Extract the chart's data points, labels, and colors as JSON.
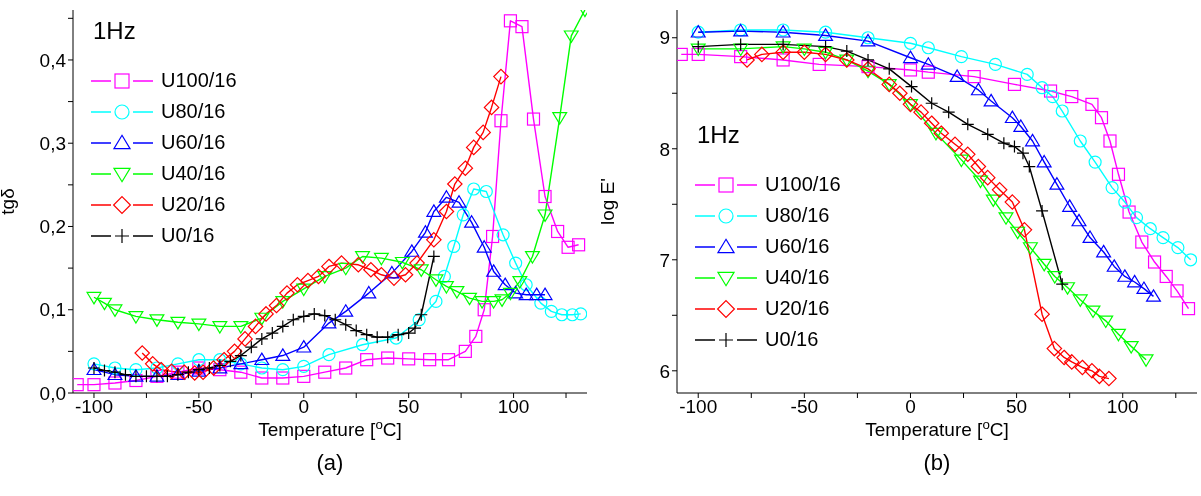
{
  "chart_data": [
    {
      "type": "line",
      "xlabel": "Temperature [$^{o}$C]",
      "ylabel": "tgδ",
      "annotations": [
        "1Hz",
        "(a)"
      ],
      "legend": "top left",
      "line_style": "solid",
      "xlim": [
        -110,
        135
      ],
      "xticks": [
        -100,
        {
          "value": -75,
          "label": null
        },
        -50,
        {
          "value": -25,
          "label": null
        },
        0,
        {
          "value": 25,
          "label": null
        },
        50,
        {
          "value": 75,
          "label": null
        },
        100,
        {
          "value": 125,
          "label": null
        }
      ],
      "ylim": [
        0,
        0.46
      ],
      "yticks": [
        {
          "value": 0,
          "label": "0,0"
        },
        {
          "value": 0.05,
          "label": null
        },
        {
          "value": 0.1,
          "label": "0,1"
        },
        {
          "value": 0.15,
          "label": null
        },
        {
          "value": 0.2,
          "label": "0,2"
        },
        {
          "value": 0.25,
          "label": null
        },
        {
          "value": 0.3,
          "label": "0,3"
        },
        {
          "value": 0.35,
          "label": null
        },
        {
          "value": 0.4,
          "label": "0,4"
        },
        {
          "value": 0.45,
          "label": null
        }
      ],
      "series": [
        {
          "name": "U100/16",
          "color": "#ff00ff",
          "marker": "square",
          "x": [
            -108,
            -100,
            -90,
            -80,
            -70,
            -60,
            -50,
            -40,
            -30,
            -20,
            -10,
            0,
            10,
            20,
            30,
            40,
            50,
            60,
            69,
            77,
            82,
            86,
            90,
            94,
            98.5,
            104,
            109.5,
            115,
            121,
            126,
            131
          ],
          "values": [
            0.01,
            0.01,
            0.012,
            0.015,
            0.02,
            0.025,
            0.03,
            0.028,
            0.025,
            0.018,
            0.018,
            0.02,
            0.025,
            0.03,
            0.04,
            0.042,
            0.041,
            0.04,
            0.04,
            0.05,
            0.068,
            0.1,
            0.188,
            0.327,
            0.447,
            0.44,
            0.329,
            0.236,
            0.194,
            0.175,
            0.178
          ]
        },
        {
          "name": "U80/16",
          "color": "#00ffff",
          "marker": "circle",
          "x": [
            -100,
            -90,
            -80,
            -70,
            -60,
            -50,
            -40,
            -30,
            -20,
            -10,
            0,
            12,
            28,
            44,
            55,
            63,
            67,
            71.5,
            76,
            81,
            87,
            95,
            101,
            106,
            113,
            118,
            123,
            128,
            132
          ],
          "values": [
            0.035,
            0.03,
            0.028,
            0.03,
            0.035,
            0.04,
            0.04,
            0.035,
            0.03,
            0.028,
            0.032,
            0.046,
            0.058,
            0.066,
            0.088,
            0.11,
            0.14,
            0.176,
            0.214,
            0.245,
            0.242,
            0.19,
            0.156,
            0.13,
            0.108,
            0.098,
            0.094,
            0.094,
            0.095
          ]
        },
        {
          "name": "U60/16",
          "color": "#0000ff",
          "marker": "triangle",
          "x": [
            -100,
            -90,
            -80,
            -70,
            -60,
            -50,
            -40,
            -30,
            -20,
            -10,
            0,
            12,
            20,
            31,
            42,
            51.5,
            58,
            62,
            68,
            74,
            80,
            86,
            90.5,
            96,
            101,
            106,
            111,
            115
          ],
          "values": [
            0.028,
            0.022,
            0.02,
            0.02,
            0.022,
            0.026,
            0.03,
            0.035,
            0.04,
            0.045,
            0.055,
            0.084,
            0.098,
            0.12,
            0.144,
            0.17,
            0.193,
            0.218,
            0.235,
            0.229,
            0.205,
            0.175,
            0.146,
            0.13,
            0.12,
            0.118,
            0.118,
            0.118
          ]
        },
        {
          "name": "U40/16",
          "color": "#00ff00",
          "marker": "triangle-down",
          "x": [
            -100,
            -95,
            -90,
            -80,
            -70,
            -60,
            -50,
            -40,
            -30,
            -20,
            -10,
            0,
            10,
            20,
            28,
            37,
            47,
            56,
            63,
            68,
            73,
            79,
            85,
            90.5,
            94.5,
            98.5,
            103,
            109,
            115,
            122,
            127.5,
            134
          ],
          "values": [
            0.115,
            0.108,
            0.1,
            0.092,
            0.088,
            0.085,
            0.083,
            0.08,
            0.08,
            0.09,
            0.11,
            0.125,
            0.14,
            0.15,
            0.164,
            0.162,
            0.157,
            0.148,
            0.136,
            0.128,
            0.122,
            0.114,
            0.11,
            0.11,
            0.112,
            0.12,
            0.134,
            0.164,
            0.214,
            0.331,
            0.429,
            0.46
          ]
        },
        {
          "name": "U20/16",
          "color": "#ff0000",
          "marker": "diamond",
          "x": [
            -77,
            -72,
            -68,
            -63,
            -57,
            -52,
            -48,
            -43,
            -38,
            -33,
            -28,
            -23,
            -18,
            -13,
            -8,
            -3,
            2,
            7,
            12,
            18,
            26,
            32,
            37,
            43,
            48.5,
            54,
            62,
            68,
            72,
            77,
            81,
            85.5,
            89.5,
            94
          ],
          "values": [
            0.048,
            0.035,
            0.028,
            0.026,
            0.025,
            0.024,
            0.025,
            0.03,
            0.04,
            0.05,
            0.065,
            0.08,
            0.095,
            0.105,
            0.12,
            0.13,
            0.135,
            0.14,
            0.152,
            0.156,
            0.154,
            0.148,
            0.142,
            0.138,
            0.142,
            0.156,
            0.184,
            0.218,
            0.251,
            0.27,
            0.295,
            0.313,
            0.343,
            0.38
          ]
        },
        {
          "name": "U0/16",
          "color": "#000000",
          "marker": "cross",
          "x": [
            -100,
            -95,
            -90,
            -85,
            -80,
            -75,
            -70,
            -65,
            -60,
            -55,
            -50,
            -45,
            -40,
            -35,
            -30,
            -25,
            -20,
            -15,
            -10,
            -5,
            0,
            5,
            10,
            15,
            20,
            25,
            30,
            35,
            40,
            45,
            50,
            53,
            56,
            62
          ],
          "values": [
            0.03,
            0.027,
            0.025,
            0.022,
            0.02,
            0.02,
            0.02,
            0.02,
            0.022,
            0.025,
            0.028,
            0.03,
            0.033,
            0.038,
            0.045,
            0.055,
            0.065,
            0.072,
            0.08,
            0.088,
            0.092,
            0.095,
            0.093,
            0.088,
            0.082,
            0.075,
            0.07,
            0.067,
            0.067,
            0.07,
            0.072,
            0.078,
            0.094,
            0.164
          ]
        }
      ]
    },
    {
      "type": "line",
      "xlabel": "Temperature [$^{o}$C]",
      "ylabel": "log E'",
      "annotations": [
        "1Hz",
        "(b)"
      ],
      "legend": "bottom left",
      "line_style": "solid",
      "xlim": [
        -110,
        135
      ],
      "xticks": [
        -100,
        {
          "value": -75,
          "label": null
        },
        -50,
        {
          "value": -25,
          "label": null
        },
        0,
        {
          "value": 25,
          "label": null
        },
        50,
        {
          "value": 75,
          "label": null
        },
        100,
        {
          "value": 125,
          "label": null
        }
      ],
      "ylim": [
        5.8,
        9.25
      ],
      "yticks": [
        6,
        {
          "value": 6.5,
          "label": null
        },
        7,
        {
          "value": 7.5,
          "label": null
        },
        8,
        {
          "value": 8.5,
          "label": null
        },
        9
      ],
      "series": [
        {
          "name": "U100/16",
          "color": "#ff00ff",
          "marker": "square",
          "x": [
            -108,
            -100,
            -80,
            -60,
            -43,
            -20,
            0,
            8.4,
            30,
            49,
            66,
            76,
            85.5,
            90,
            94,
            98,
            103,
            109,
            115,
            120.5,
            125.6,
            131
          ],
          "values": [
            8.85,
            8.85,
            8.83,
            8.8,
            8.76,
            8.74,
            8.71,
            8.69,
            8.65,
            8.58,
            8.52,
            8.47,
            8.4,
            8.28,
            8.07,
            7.77,
            7.43,
            7.16,
            6.98,
            6.85,
            6.72,
            6.56
          ]
        },
        {
          "name": "U80/16",
          "color": "#00ffff",
          "marker": "circle",
          "x": [
            -100,
            -80,
            -60,
            -40,
            -20,
            0,
            8.4,
            24,
            40,
            55,
            62,
            67,
            71.5,
            80,
            87,
            95,
            101,
            106.5,
            113,
            119,
            126,
            132
          ],
          "values": [
            9.05,
            9.07,
            9.07,
            9.05,
            9.0,
            8.95,
            8.91,
            8.83,
            8.76,
            8.67,
            8.55,
            8.47,
            8.34,
            8.07,
            7.88,
            7.65,
            7.52,
            7.38,
            7.28,
            7.2,
            7.11,
            7.0
          ]
        },
        {
          "name": "U60/16",
          "color": "#0000ff",
          "marker": "triangle",
          "x": [
            -100,
            -80,
            -60,
            -40,
            -20,
            0,
            8.4,
            22,
            32,
            38,
            48,
            52,
            57.5,
            63,
            69,
            75,
            79.4,
            84.6,
            91,
            96,
            101,
            105.6,
            110,
            114.5
          ],
          "values": [
            9.05,
            9.06,
            9.05,
            9.02,
            8.97,
            8.82,
            8.76,
            8.65,
            8.53,
            8.43,
            8.28,
            8.2,
            8.07,
            7.88,
            7.68,
            7.48,
            7.35,
            7.2,
            7.07,
            6.94,
            6.85,
            6.8,
            6.74,
            6.67
          ]
        },
        {
          "name": "U40/16",
          "color": "#00ff00",
          "marker": "triangle-down",
          "x": [
            -100,
            -80,
            -60,
            -50,
            -40,
            -30,
            -20,
            -10,
            0,
            12,
            24,
            33,
            39,
            45,
            50.5,
            56.5,
            63,
            68,
            74,
            80,
            86,
            92,
            98,
            104,
            111
          ],
          "values": [
            8.9,
            8.9,
            8.92,
            8.9,
            8.87,
            8.8,
            8.7,
            8.58,
            8.4,
            8.14,
            7.9,
            7.71,
            7.54,
            7.38,
            7.25,
            7.11,
            6.96,
            6.85,
            6.75,
            6.64,
            6.54,
            6.45,
            6.33,
            6.22,
            6.1
          ]
        },
        {
          "name": "U20/16",
          "color": "#ff0000",
          "marker": "diamond",
          "x": [
            -77,
            -70,
            -60,
            -50,
            -40,
            -30,
            -20,
            -10,
            -5,
            0,
            5,
            10,
            14.5,
            21,
            27,
            32,
            36.4,
            42,
            48,
            53.7,
            62,
            67.8,
            72.4,
            76,
            81,
            85.5,
            89,
            93.5
          ],
          "values": [
            8.8,
            8.85,
            8.87,
            8.87,
            8.85,
            8.8,
            8.72,
            8.58,
            8.5,
            8.4,
            8.33,
            8.23,
            8.14,
            8.04,
            7.95,
            7.84,
            7.74,
            7.63,
            7.52,
            7.27,
            6.51,
            6.2,
            6.12,
            6.08,
            6.03,
            6.0,
            5.95,
            5.93
          ]
        },
        {
          "name": "U0/16",
          "color": "#000000",
          "marker": "cross",
          "x": [
            -100,
            -80,
            -60,
            -40,
            -30,
            -20,
            -10,
            0.5,
            10,
            18,
            27,
            36.4,
            44,
            49,
            53,
            56,
            62,
            71.5
          ],
          "values": [
            8.92,
            8.94,
            8.94,
            8.92,
            8.88,
            8.8,
            8.72,
            8.56,
            8.41,
            8.33,
            8.22,
            8.13,
            8.05,
            8.02,
            7.96,
            7.84,
            7.44,
            6.78
          ]
        }
      ]
    }
  ]
}
